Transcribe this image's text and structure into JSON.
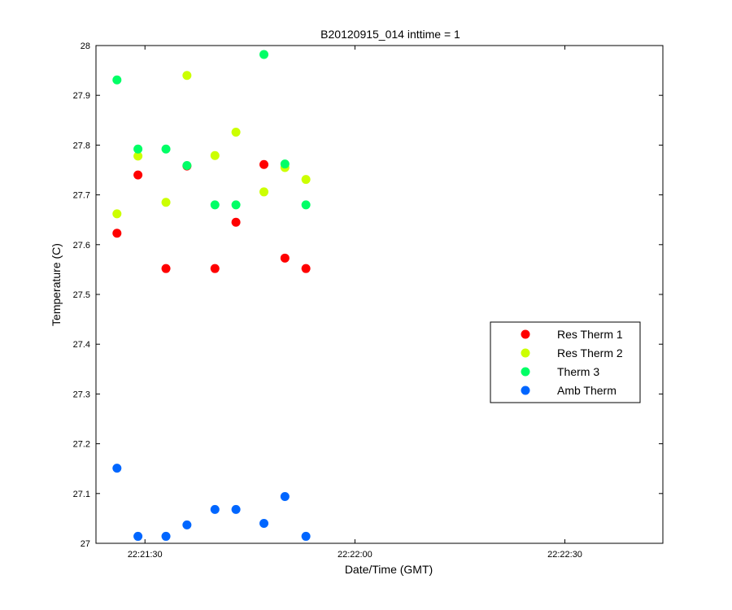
{
  "chart_data": {
    "type": "scatter",
    "title": "B20120915_014 inttime = 1",
    "xlabel": "Date/Time (GMT)",
    "ylabel": "Temperature (C)",
    "xlim": [
      "22:21:23",
      "22:22:44"
    ],
    "ylim": [
      27,
      28
    ],
    "x_ticks": [
      "22:21:30",
      "22:22:00",
      "22:22:30"
    ],
    "y_ticks": [
      "27",
      "27.1",
      "27.2",
      "27.3",
      "27.4",
      "27.5",
      "27.6",
      "27.7",
      "27.8",
      "27.9",
      "28"
    ],
    "legend_position": "right",
    "grid": false,
    "x": [
      "22:21:26",
      "22:21:29",
      "22:21:33",
      "22:21:36",
      "22:21:40",
      "22:21:43",
      "22:21:47",
      "22:21:50",
      "22:21:53"
    ],
    "series": [
      {
        "name": "Res Therm 1",
        "color": "#ff0000",
        "values": [
          27.623,
          27.74,
          27.552,
          27.758,
          27.552,
          27.645,
          27.761,
          27.573,
          27.552
        ]
      },
      {
        "name": "Res Therm 2",
        "color": "#ccff00",
        "values": [
          27.662,
          27.778,
          27.685,
          27.94,
          27.779,
          27.826,
          27.706,
          27.755,
          27.731
        ]
      },
      {
        "name": "Therm 3",
        "color": "#00ff66",
        "values": [
          27.931,
          27.792,
          27.792,
          27.759,
          27.68,
          27.68,
          27.982,
          27.762,
          27.68
        ]
      },
      {
        "name": "Amb Therm",
        "color": "#0066ff",
        "values": [
          27.151,
          27.014,
          27.014,
          27.037,
          27.068,
          27.068,
          27.04,
          27.094,
          27.014
        ]
      }
    ]
  }
}
